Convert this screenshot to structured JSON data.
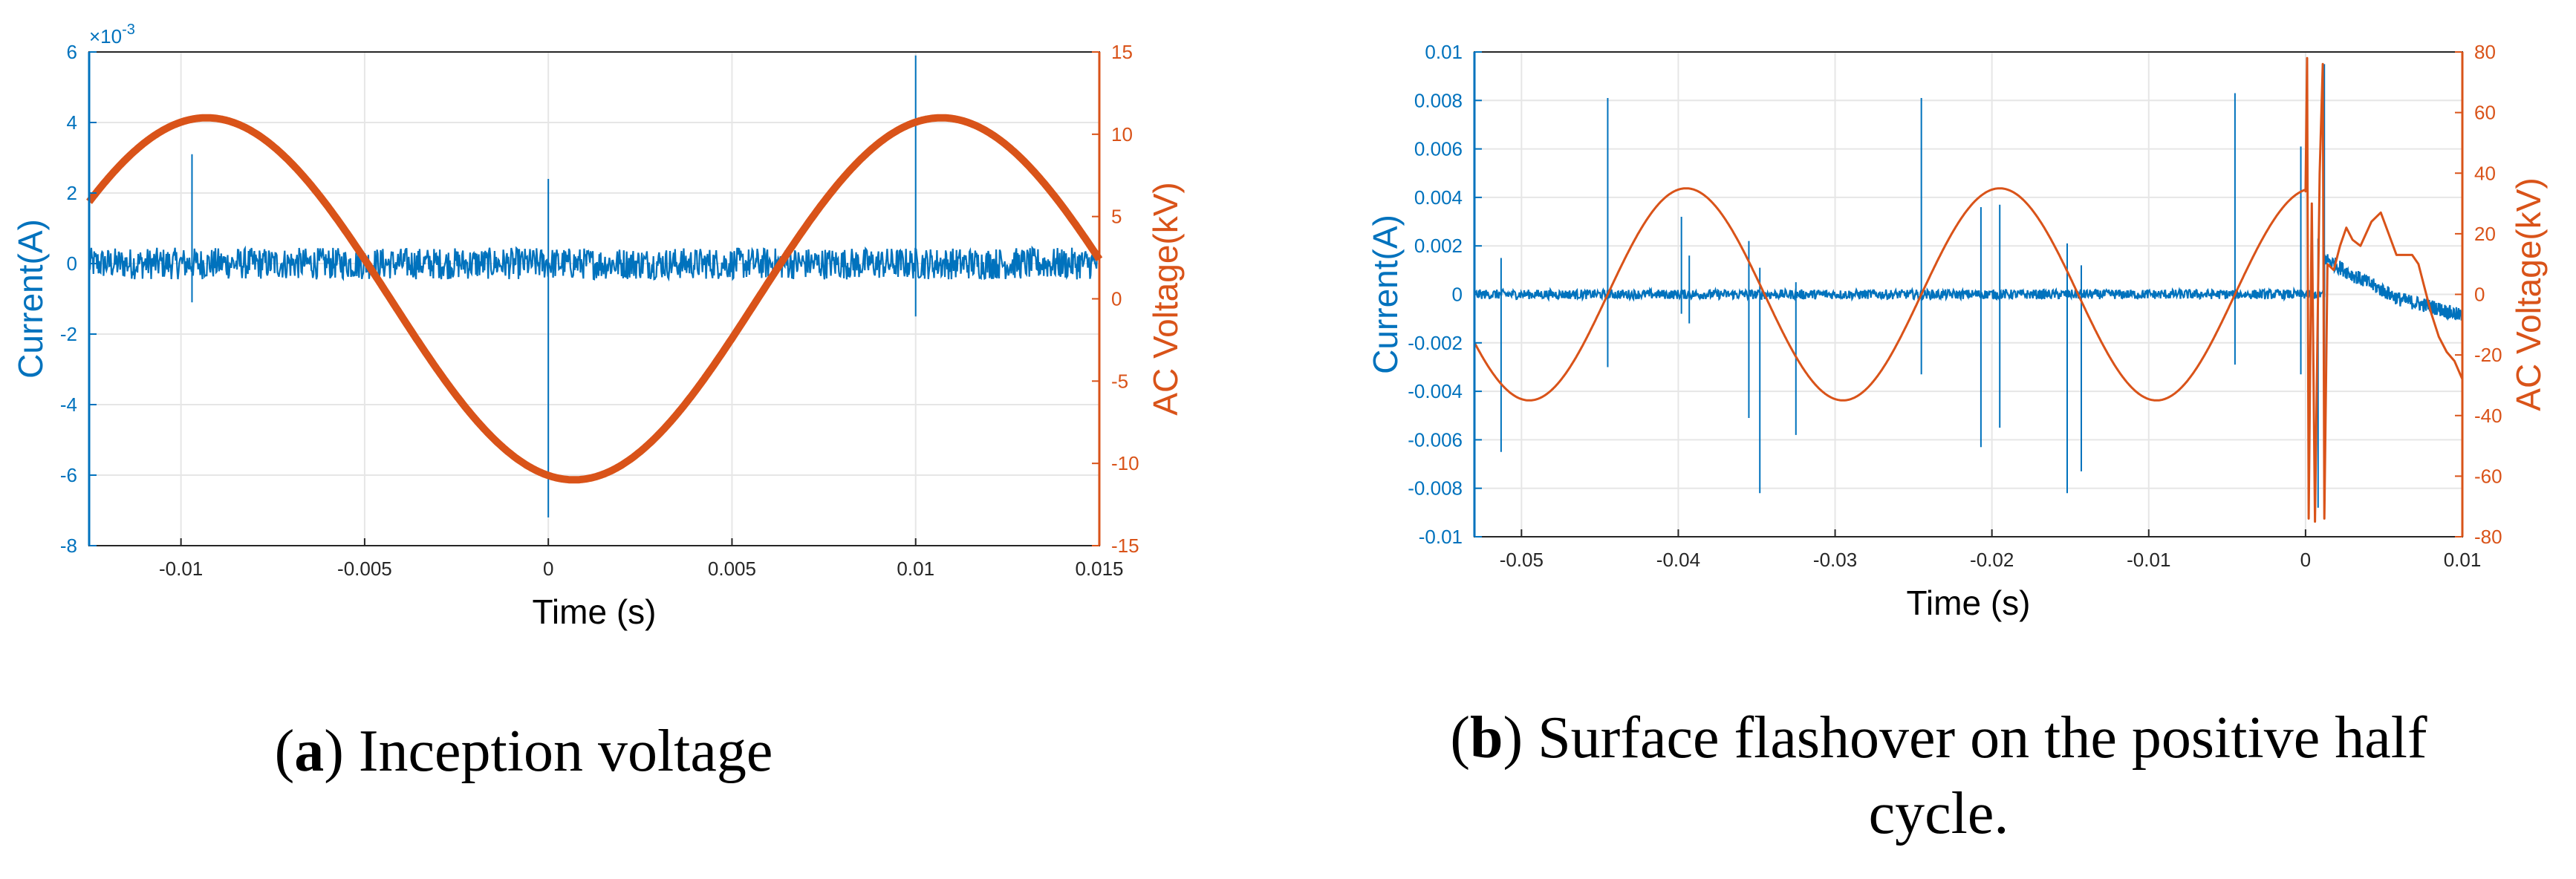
{
  "colors": {
    "current": "#0072BD",
    "voltage": "#D95319",
    "grid": "#E6E6E6",
    "axis": "#262626"
  },
  "chart_data": [
    {
      "type": "line",
      "id": "a",
      "caption_letter": "a",
      "caption_text": ") Inception voltage",
      "caption_open": "(",
      "xlabel": "Time (s)",
      "ylabel_left": "Current(A)",
      "ylabel_right": "AC Voltage(kV)",
      "left_exponent": "×10",
      "left_exponent_power": "-3",
      "xlim": [
        -0.0125,
        0.015
      ],
      "ylim_left": [
        -8,
        6
      ],
      "ylim_right": [
        -15,
        15
      ],
      "xticks": [
        -0.01,
        -0.005,
        0,
        0.005,
        0.01,
        0.015
      ],
      "xtick_labels": [
        "-0.01",
        "-0.005",
        "0",
        "0.005",
        "0.01",
        "0.015"
      ],
      "yticks_left": [
        -8,
        -6,
        -4,
        -2,
        0,
        2,
        4,
        6
      ],
      "ytick_labels_left": [
        "-8",
        "-6",
        "-4",
        "-2",
        "0",
        "2",
        "4",
        "6"
      ],
      "yticks_right": [
        -15,
        -10,
        -5,
        0,
        5,
        10,
        15
      ],
      "ytick_labels_right": [
        "-15",
        "-10",
        "-5",
        "0",
        "5",
        "10",
        "15"
      ],
      "series": [
        {
          "name": "AC Voltage",
          "axis": "right",
          "kind": "sine",
          "amplitude": 11,
          "frequency": 50,
          "peak_time": -0.0093,
          "stroke_width": 10
        },
        {
          "name": "Current",
          "axis": "left",
          "kind": "noise",
          "baseline": 0,
          "noise": 0.45,
          "spikes": [
            {
              "t": -0.0097,
              "top": 3.1,
              "bottom": -1.1
            },
            {
              "t": 0.0,
              "top": 2.4,
              "bottom": -7.2
            },
            {
              "t": 0.01,
              "top": 5.9,
              "bottom": -1.5
            }
          ]
        }
      ]
    },
    {
      "type": "line",
      "id": "b",
      "caption_letter": "b",
      "caption_text": ") Surface flashover on the positive half",
      "caption_open": "(",
      "caption_line2": "cycle.",
      "xlabel": "Time (s)",
      "ylabel_left": "Current(A)",
      "ylabel_right": "AC Voltage(kV)",
      "xlim": [
        -0.053,
        0.01
      ],
      "ylim_left": [
        -0.01,
        0.01
      ],
      "ylim_right": [
        -80,
        80
      ],
      "xticks": [
        -0.05,
        -0.04,
        -0.03,
        -0.02,
        -0.01,
        0,
        0.01
      ],
      "xtick_labels": [
        "-0.05",
        "-0.04",
        "-0.03",
        "-0.02",
        "-0.01",
        "0",
        "0.01"
      ],
      "yticks_left": [
        -0.01,
        -0.008,
        -0.006,
        -0.004,
        -0.002,
        0,
        0.002,
        0.004,
        0.006,
        0.008,
        0.01
      ],
      "ytick_labels_left": [
        "-0.01",
        "-0.008",
        "-0.006",
        "-0.004",
        "-0.002",
        "0",
        "0.002",
        "0.004",
        "0.006",
        "0.008",
        "0.01"
      ],
      "yticks_right": [
        -80,
        -60,
        -40,
        -20,
        0,
        20,
        40,
        60,
        80
      ],
      "ytick_labels_right": [
        "-80",
        "-60",
        "-40",
        "-20",
        "0",
        "20",
        "40",
        "60",
        "80"
      ],
      "series": [
        {
          "name": "AC Voltage",
          "axis": "right",
          "kind": "sine_then_flashover",
          "amplitude": 35,
          "frequency": 50,
          "peak_time": -0.0395,
          "stroke_width": 3,
          "flashover_t": 0.0,
          "after_points": [
            [
              0.0,
              34
            ],
            [
              0.0001,
              78
            ],
            [
              0.0002,
              -74
            ],
            [
              0.0004,
              30
            ],
            [
              0.0006,
              -75
            ],
            [
              0.0009,
              40
            ],
            [
              0.0011,
              76
            ],
            [
              0.0012,
              -74
            ],
            [
              0.0014,
              10
            ],
            [
              0.0018,
              8
            ],
            [
              0.0022,
              16
            ],
            [
              0.0026,
              22
            ],
            [
              0.003,
              18
            ],
            [
              0.0035,
              16
            ],
            [
              0.0042,
              24
            ],
            [
              0.0048,
              27
            ],
            [
              0.0053,
              20
            ],
            [
              0.0058,
              13
            ],
            [
              0.0063,
              13
            ],
            [
              0.0068,
              13
            ],
            [
              0.0072,
              10
            ],
            [
              0.0076,
              2
            ],
            [
              0.008,
              -6
            ],
            [
              0.0085,
              -14
            ],
            [
              0.009,
              -19
            ],
            [
              0.0095,
              -22
            ],
            [
              0.01,
              -28
            ]
          ]
        },
        {
          "name": "Current",
          "axis": "left",
          "kind": "noise",
          "baseline": 0,
          "noise": 0.0002,
          "spikes": [
            {
              "t": -0.0513,
              "top": 0.0015,
              "bottom": -0.0065
            },
            {
              "t": -0.0445,
              "top": 0.0081,
              "bottom": -0.003
            },
            {
              "t": -0.0398,
              "top": 0.0032,
              "bottom": -0.0008
            },
            {
              "t": -0.0393,
              "top": 0.0016,
              "bottom": -0.0012
            },
            {
              "t": -0.0355,
              "top": 0.0022,
              "bottom": -0.0051
            },
            {
              "t": -0.0348,
              "top": 0.0011,
              "bottom": -0.0082
            },
            {
              "t": -0.0325,
              "top": 0.0005,
              "bottom": -0.0058
            },
            {
              "t": -0.0245,
              "top": 0.0081,
              "bottom": -0.0033
            },
            {
              "t": -0.0207,
              "top": 0.0036,
              "bottom": -0.0063
            },
            {
              "t": -0.0195,
              "top": 0.0037,
              "bottom": -0.0055
            },
            {
              "t": -0.0152,
              "top": 0.0021,
              "bottom": -0.0082
            },
            {
              "t": -0.0143,
              "top": 0.0012,
              "bottom": -0.0073
            },
            {
              "t": -0.0045,
              "top": 0.0083,
              "bottom": -0.0029
            },
            {
              "t": -0.0003,
              "top": 0.0061,
              "bottom": -0.0033
            },
            {
              "t": 0.0008,
              "top": 0.0023,
              "bottom": -0.0088
            },
            {
              "t": 0.0012,
              "top": 0.0095,
              "bottom": -0.0076
            }
          ],
          "after_envelope": [
            [
              0.0012,
              0.0015
            ],
            [
              0.003,
              0.0008
            ],
            [
              0.006,
              -0.0002
            ],
            [
              0.008,
              -0.0005
            ],
            [
              0.01,
              -0.0009
            ]
          ]
        }
      ]
    }
  ]
}
